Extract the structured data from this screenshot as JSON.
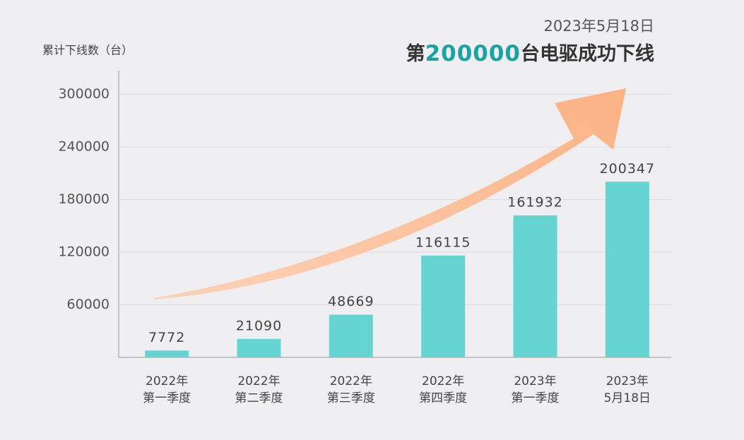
{
  "chart_data": {
    "type": "bar",
    "subtitle": "2023年5月18日",
    "title_prefix": "第",
    "title_highlight": "200000",
    "title_suffix": "台电驱成功下线",
    "y_axis_label": "累计下线数（台）",
    "categories": [
      "2022年\n第一季度",
      "2022年\n第二季度",
      "2022年\n第三季度",
      "2022年\n第四季度",
      "2023年\n第一季度",
      "2023年\n5月18日"
    ],
    "values": [
      7772,
      21090,
      48669,
      116115,
      161932,
      200347
    ],
    "color": "#66d4d0",
    "ylim": [
      0,
      327000
    ],
    "yticks": [
      60000,
      120000,
      180000,
      240000,
      300000
    ],
    "grid": true
  }
}
